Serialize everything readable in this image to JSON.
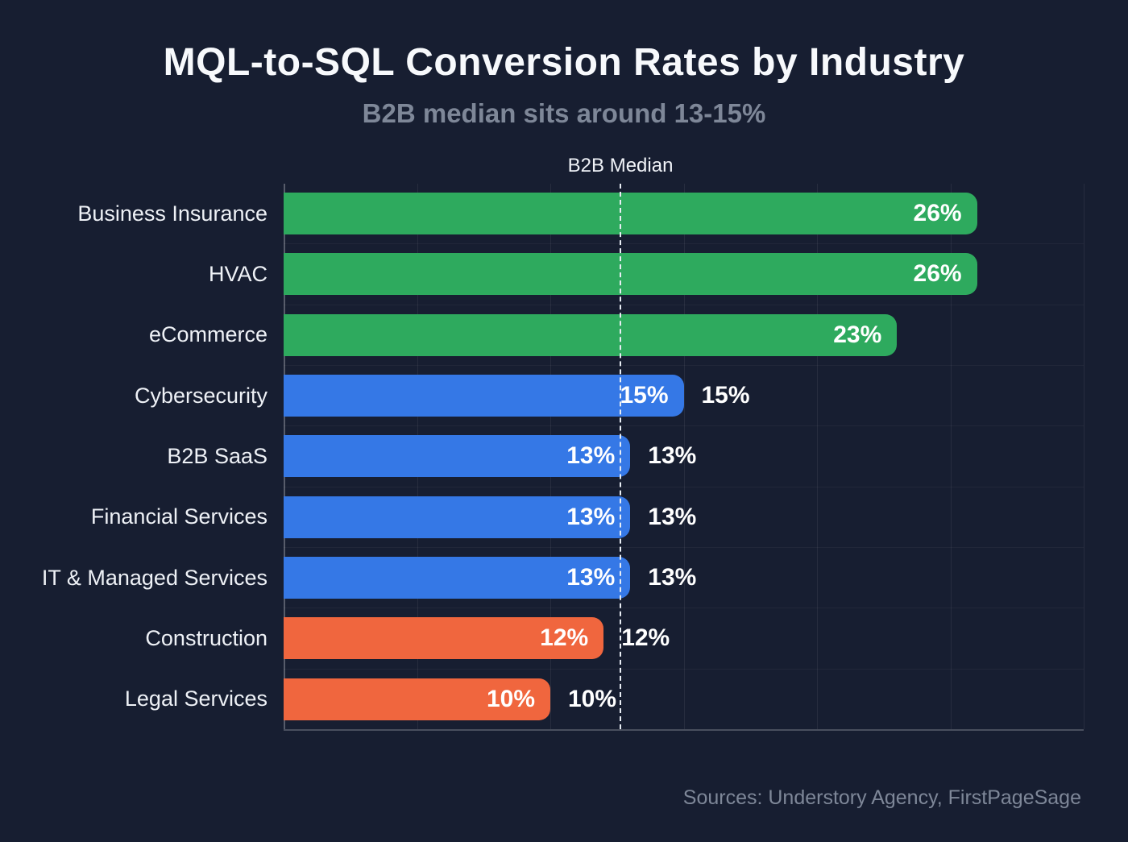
{
  "header": {
    "title": "MQL-to-SQL Conversion Rates by Industry",
    "subtitle": "B2B median sits around 13-15%"
  },
  "footer": {
    "source": "Sources: Understory Agency, FirstPageSage"
  },
  "chart_data": {
    "type": "bar",
    "orientation": "horizontal",
    "title": "MQL-to-SQL Conversion Rates by Industry",
    "subtitle": "B2B median sits around 13-15%",
    "categories": [
      "Business Insurance",
      "HVAC",
      "eCommerce",
      "Cybersecurity",
      "B2B SaaS",
      "Financial Services",
      "IT & Managed Services",
      "Construction",
      "Legal Services"
    ],
    "values": [
      26,
      26,
      23,
      15,
      13,
      13,
      13,
      12,
      10
    ],
    "bar_labels": [
      "26%",
      "26%",
      "23%",
      "15%",
      "13%",
      "13%",
      "13%",
      "12%",
      "10%"
    ],
    "outside_labels": [
      "",
      "",
      "",
      "15%",
      "13%",
      "13%",
      "13%",
      "12%",
      "10%"
    ],
    "bar_colors": [
      "#2eaa5e",
      "#2eaa5e",
      "#2eaa5e",
      "#3578e6",
      "#3578e6",
      "#3578e6",
      "#3578e6",
      "#f0663e",
      "#f0663e"
    ],
    "xlim": [
      0,
      30
    ],
    "gridline_values": [
      0,
      5,
      10,
      15,
      20,
      25,
      30
    ],
    "median_value": 12.6,
    "median_label": "B2B Median",
    "xlabel": "",
    "ylabel": "",
    "legend": "none",
    "grid": "vertical"
  },
  "colors": {
    "background": "#171e31",
    "title": "#f7f9fc",
    "subtitle": "#7e8798",
    "green": "#2eaa5e",
    "blue": "#3578e6",
    "orange": "#f0663e",
    "grid_line": "rgba(255,255,255,0.07)",
    "median_line": "#e8edf4",
    "value_text": "#ffffff"
  }
}
